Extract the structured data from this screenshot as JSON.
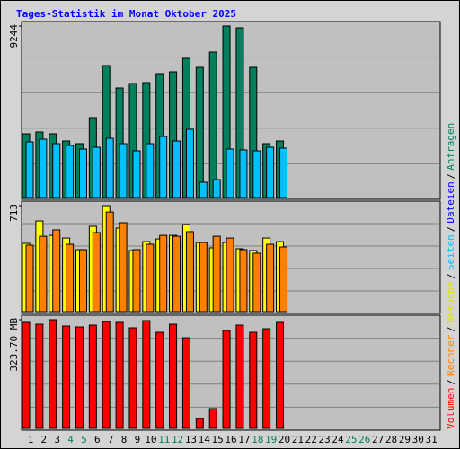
{
  "title": "Tages-Statistik im Monat Oktober 2025",
  "legend": [
    {
      "name": "Volumen",
      "color": "#ff0000"
    },
    {
      "name": "Rechner",
      "color": "#ff8000"
    },
    {
      "name": "Besuche",
      "color": "#e0e000"
    },
    {
      "name": "Seiten",
      "color": "#00c0ff"
    },
    {
      "name": "Dateien",
      "color": "#0000ff"
    },
    {
      "name": "Anfragen",
      "color": "#00805c"
    }
  ],
  "legend_separator": "/",
  "chart_data": [
    {
      "type": "bar",
      "ylim": [
        0,
        9244
      ],
      "yticks": [
        9244
      ],
      "grid": true,
      "series": [
        {
          "color": "#00805c",
          "values": [
            3436,
            3533,
            3436,
            3049,
            2904,
            4308,
            7115,
            5905,
            6147,
            6195,
            6679,
            6776,
            7502,
            7018,
            7841,
            9244,
            9147,
            7018,
            2904,
            3049,
            null,
            null,
            null,
            null,
            null,
            null,
            null,
            null,
            null,
            null,
            null
          ]
        },
        {
          "color": "#00c0ff",
          "values": [
            3001,
            3146,
            2904,
            2807,
            2614,
            2710,
            3194,
            2904,
            2517,
            2904,
            3291,
            3049,
            3678,
            823,
            968,
            2614,
            2565,
            2517,
            2710,
            2662,
            null,
            null,
            null,
            null,
            null,
            null,
            null,
            null,
            null,
            null,
            null
          ]
        }
      ]
    },
    {
      "type": "bar",
      "ylim": [
        0,
        713
      ],
      "yticks": [
        713
      ],
      "grid": true,
      "series": [
        {
          "color": "#ffff00",
          "values": [
            459,
            610,
            513,
            495,
            417,
            574,
            713,
            562,
            411,
            471,
            489,
            513,
            586,
            465,
            429,
            465,
            423,
            411,
            495,
            471,
            null,
            null,
            null,
            null,
            null,
            null,
            null,
            null,
            null,
            null,
            null
          ]
        },
        {
          "color": "#ff8000",
          "values": [
            447,
            507,
            550,
            453,
            417,
            532,
            670,
            598,
            417,
            453,
            513,
            507,
            538,
            465,
            507,
            495,
            417,
            393,
            453,
            435,
            null,
            null,
            null,
            null,
            null,
            null,
            null,
            null,
            null,
            null,
            null
          ]
        }
      ]
    },
    {
      "type": "bar",
      "ylim": [
        0,
        323.7
      ],
      "yticks": [
        {
          "value": 323.7,
          "label": "323.70 MB"
        }
      ],
      "grid": true,
      "categories": [
        "1",
        "2",
        "3",
        "4",
        "5",
        "6",
        "7",
        "8",
        "9",
        "10",
        "11",
        "12",
        "13",
        "14",
        "15",
        "16",
        "17",
        "18",
        "19",
        "20",
        "21",
        "22",
        "23",
        "24",
        "25",
        "26",
        "27",
        "28",
        "29",
        "30",
        "31"
      ],
      "category_colors": [
        "#000000",
        "#000000",
        "#000000",
        "#00805c",
        "#00805c",
        "#000000",
        "#000000",
        "#000000",
        "#000000",
        "#000000",
        "#00805c",
        "#00805c",
        "#000000",
        "#000000",
        "#000000",
        "#000000",
        "#000000",
        "#00805c",
        "#00805c",
        "#000000",
        "#000000",
        "#000000",
        "#000000",
        "#000000",
        "#00805c",
        "#00805c",
        "#000000",
        "#000000",
        "#000000",
        "#000000",
        "#000000"
      ],
      "series": [
        {
          "color": "#ff0000",
          "values": [
            315.7,
            310.3,
            323.7,
            305.0,
            302.3,
            307.6,
            318.3,
            315.7,
            299.6,
            321.0,
            286.2,
            310.3,
            270.2,
            29.4,
            58.9,
            291.6,
            307.6,
            286.2,
            296.9,
            315.7,
            null,
            null,
            null,
            null,
            null,
            null,
            null,
            null,
            null,
            null,
            null
          ]
        }
      ]
    }
  ]
}
